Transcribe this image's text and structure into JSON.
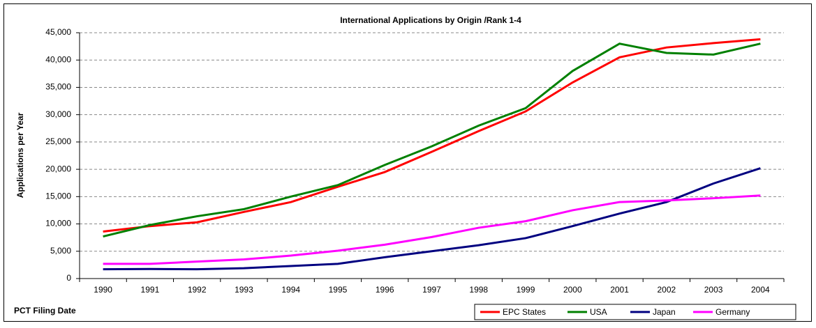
{
  "chart_data": {
    "type": "line",
    "title": "International Applications by Origin /Rank 1-4",
    "y_label": "Applications per Year",
    "x_label": "PCT Filing Date",
    "categories": [
      "1990",
      "1991",
      "1992",
      "1993",
      "1994",
      "1995",
      "1996",
      "1997",
      "1998",
      "1999",
      "2000",
      "2001",
      "2002",
      "2003",
      "2004"
    ],
    "series": [
      {
        "name": "EPC States",
        "color": "#ff0000",
        "values": [
          8600,
          9600,
          10300,
          12200,
          14000,
          16800,
          19500,
          23200,
          27000,
          30600,
          35900,
          40500,
          42300,
          43100,
          43800
        ]
      },
      {
        "name": "USA",
        "color": "#008000",
        "values": [
          7700,
          9800,
          11400,
          12700,
          15000,
          17100,
          20800,
          24200,
          28000,
          31200,
          38000,
          43000,
          41300,
          41000,
          43000
        ]
      },
      {
        "name": "Japan",
        "color": "#000080",
        "values": [
          1700,
          1750,
          1700,
          1900,
          2300,
          2700,
          3900,
          5000,
          6100,
          7400,
          9600,
          11900,
          14000,
          17400,
          20200
        ]
      },
      {
        "name": "Germany",
        "color": "#ff00ff",
        "values": [
          2700,
          2700,
          3100,
          3500,
          4200,
          5100,
          6200,
          7600,
          9300,
          10500,
          12500,
          14000,
          14300,
          14700,
          15200
        ]
      }
    ],
    "ylim": [
      0,
      45000
    ],
    "yticks": [
      0,
      {
        "value": 5000,
        "label": "5,000"
      },
      {
        "value": 10000,
        "label": "10,000"
      },
      {
        "value": 15000,
        "label": "15,000"
      },
      {
        "value": 20000,
        "label": "20,000"
      },
      {
        "value": 25000,
        "label": "25,000"
      },
      {
        "value": 30000,
        "label": "30,000"
      },
      {
        "value": 35000,
        "label": "35,000"
      },
      {
        "value": 40000,
        "label": "40,000"
      },
      {
        "value": 45000,
        "label": "45,000"
      }
    ],
    "grid": true,
    "legend": "bottom-right"
  }
}
